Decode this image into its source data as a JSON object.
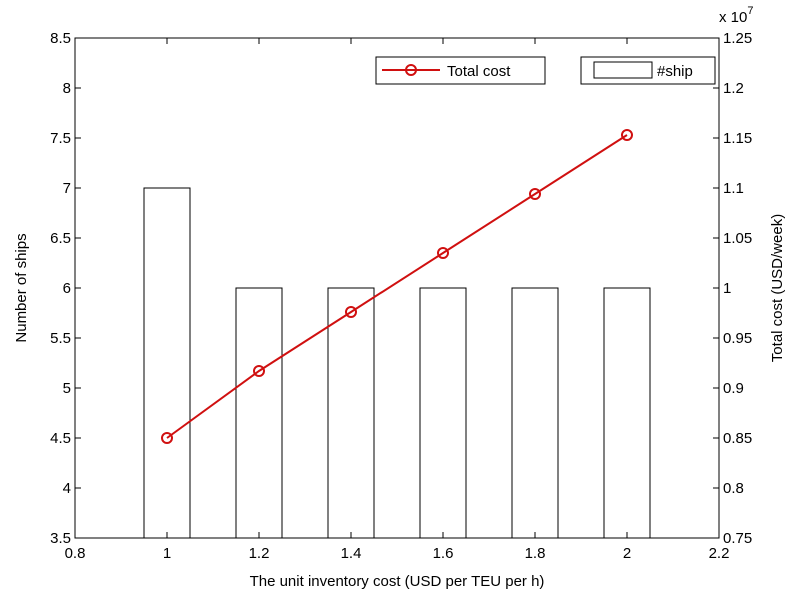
{
  "chart_data": {
    "type": "bar+line",
    "x": [
      1.0,
      1.2,
      1.4,
      1.6,
      1.8,
      2.0
    ],
    "xlabel": "The unit inventory cost (USD per TEU per h)",
    "xlim": [
      0.8,
      2.2
    ],
    "xticks": [
      "0.8",
      "1",
      "1.2",
      "1.4",
      "1.6",
      "1.8",
      "2",
      "2.2"
    ],
    "left_axis": {
      "label": "Number of ships",
      "ylim": [
        3.5,
        8.5
      ],
      "ticks": [
        "3.5",
        "4",
        "4.5",
        "5",
        "5.5",
        "6",
        "6.5",
        "7",
        "7.5",
        "8",
        "8.5"
      ]
    },
    "right_axis": {
      "label": "Total cost (USD/week)",
      "ylim": [
        0.75,
        1.25
      ],
      "ticks": [
        "0.75",
        "0.8",
        "0.85",
        "0.9",
        "0.95",
        "1",
        "1.05",
        "1.1",
        "1.15",
        "1.2",
        "1.25"
      ],
      "exponent_base": "x 10",
      "exponent_power": "7"
    },
    "series": [
      {
        "name": "#ship",
        "type": "bar",
        "axis": "left",
        "values": [
          7,
          6,
          6,
          6,
          6,
          6
        ],
        "color": "#000000"
      },
      {
        "name": "Total cost",
        "type": "line",
        "axis": "right",
        "marker": "circle",
        "values": [
          0.85,
          0.917,
          0.976,
          1.035,
          1.094,
          1.153
        ],
        "color": "#d01010"
      }
    ],
    "legend_placement": "top-right",
    "grid": false
  }
}
